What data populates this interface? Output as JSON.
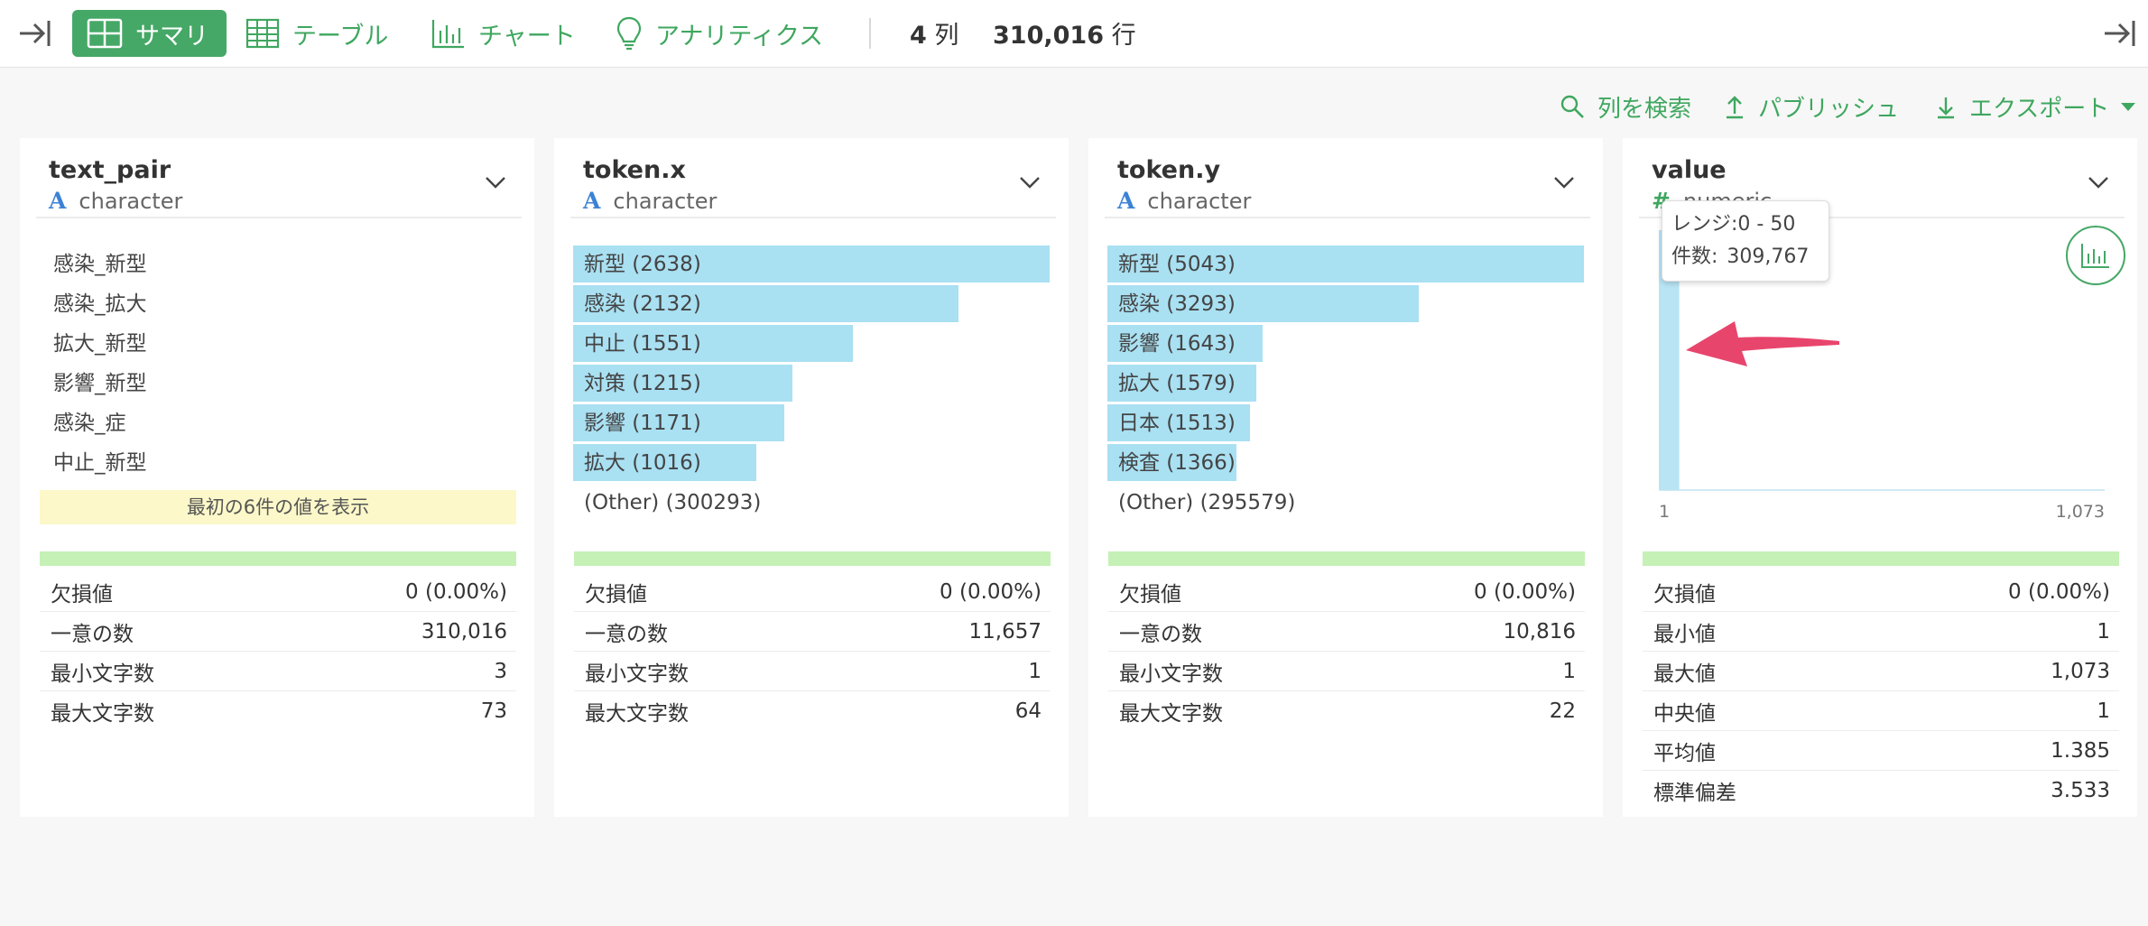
{
  "toolbar": {
    "tabs": [
      {
        "label": "サマリ",
        "icon": "summary-grid-icon",
        "active": true
      },
      {
        "label": "テーブル",
        "icon": "table-icon"
      },
      {
        "label": "チャート",
        "icon": "chart-icon"
      },
      {
        "label": "アナリティクス",
        "icon": "lightbulb-icon"
      }
    ],
    "col_count": "4",
    "col_unit": "列",
    "row_count": "310,016",
    "row_unit": "行"
  },
  "actions": {
    "search": "列を検索",
    "publish": "パブリッシュ",
    "export": "エクスポート"
  },
  "columns": [
    {
      "name": "text_pair",
      "type_icon": "A",
      "type": "character",
      "values": [
        {
          "label": "感染_新型"
        },
        {
          "label": "感染_拡大"
        },
        {
          "label": "拡大_新型"
        },
        {
          "label": "影響_新型"
        },
        {
          "label": "感染_症"
        },
        {
          "label": "中止_新型"
        }
      ],
      "show_first": "最初の6件の値を表示",
      "stats": [
        {
          "label": "欠損値",
          "value": "0 (0.00%)"
        },
        {
          "label": "一意の数",
          "value": "310,016"
        },
        {
          "label": "最小文字数",
          "value": "3"
        },
        {
          "label": "最大文字数",
          "value": "73"
        }
      ]
    },
    {
      "name": "token.x",
      "type_icon": "A",
      "type": "character",
      "values": [
        {
          "label": "新型 (2638)",
          "count": 2638
        },
        {
          "label": "感染 (2132)",
          "count": 2132
        },
        {
          "label": "中止 (1551)",
          "count": 1551
        },
        {
          "label": "対策 (1215)",
          "count": 1215
        },
        {
          "label": "影響 (1171)",
          "count": 1171
        },
        {
          "label": "拡大 (1016)",
          "count": 1016
        },
        {
          "label": "(Other) (300293)"
        }
      ],
      "stats": [
        {
          "label": "欠損値",
          "value": "0 (0.00%)"
        },
        {
          "label": "一意の数",
          "value": "11,657"
        },
        {
          "label": "最小文字数",
          "value": "1"
        },
        {
          "label": "最大文字数",
          "value": "64"
        }
      ]
    },
    {
      "name": "token.y",
      "type_icon": "A",
      "type": "character",
      "values": [
        {
          "label": "新型 (5043)",
          "count": 5043
        },
        {
          "label": "感染 (3293)",
          "count": 3293
        },
        {
          "label": "影響 (1643)",
          "count": 1643
        },
        {
          "label": "拡大 (1579)",
          "count": 1579
        },
        {
          "label": "日本 (1513)",
          "count": 1513
        },
        {
          "label": "検査 (1366)",
          "count": 1366
        },
        {
          "label": "(Other) (295579)"
        }
      ],
      "stats": [
        {
          "label": "欠損値",
          "value": "0 (0.00%)"
        },
        {
          "label": "一意の数",
          "value": "10,816"
        },
        {
          "label": "最小文字数",
          "value": "1"
        },
        {
          "label": "最大文字数",
          "value": "22"
        }
      ]
    },
    {
      "name": "value",
      "type_icon": "#",
      "type": "numeric",
      "stats": [
        {
          "label": "欠損値",
          "value": "0 (0.00%)"
        },
        {
          "label": "最小値",
          "value": "1"
        },
        {
          "label": "最大値",
          "value": "1,073"
        },
        {
          "label": "中央値",
          "value": "1"
        },
        {
          "label": "平均値",
          "value": "1.385"
        },
        {
          "label": "標準偏差",
          "value": "3.533"
        }
      ]
    }
  ],
  "tooltip": {
    "range_label": "レンジ:",
    "range_value": "0 - 50",
    "count_label": "件数:",
    "count_value": "309,767"
  },
  "chart_data": {
    "type": "bar",
    "xlim": [
      1,
      1073
    ],
    "x_tick_labels": [
      "1",
      "1,073"
    ],
    "bins": [
      {
        "range": "0 - 50",
        "count": 309767
      }
    ],
    "bar_color": "#a9e0f2"
  },
  "colors": {
    "accent": "#45a866",
    "bar": "#a9e0f2",
    "missing_bar": "#c5f1b6",
    "highlight": "#fcf8c9",
    "arrow": "#e8456d"
  }
}
